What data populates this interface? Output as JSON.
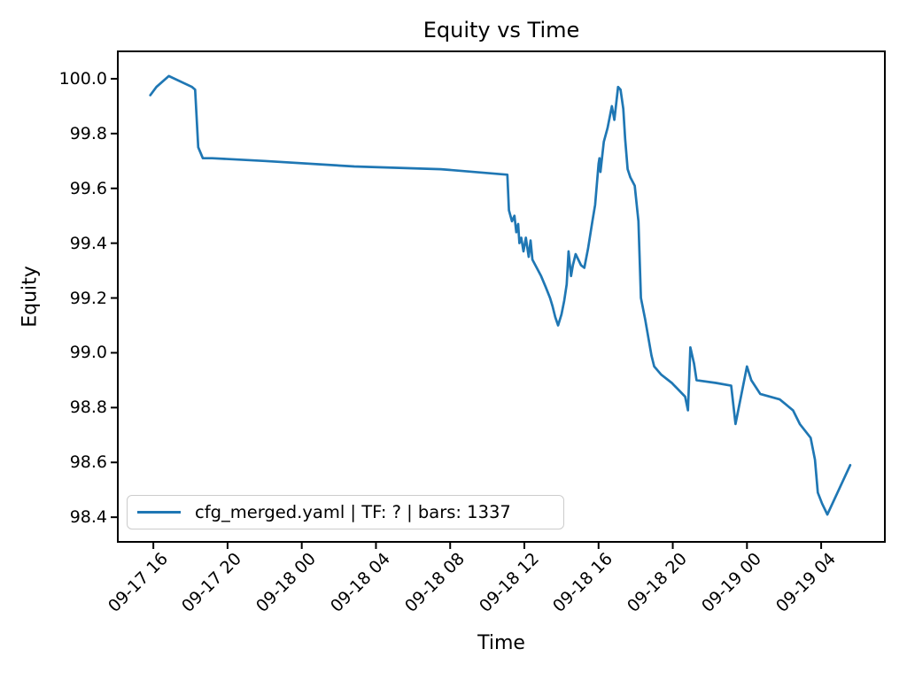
{
  "colors": {
    "line": "#1f77b4",
    "background": "#ffffff",
    "text": "#000000",
    "legend_border": "#cccccc"
  },
  "chart_data": {
    "type": "line",
    "title": "Equity vs Time",
    "xlabel": "Time",
    "ylabel": "Equity",
    "legend_position": "lower left",
    "grid": false,
    "xlim": [
      "09-17 14:05",
      "09-19 07:26"
    ],
    "ylim": [
      98.31,
      100.1
    ],
    "x_ticks": [
      "09-17 16",
      "09-17 20",
      "09-18 00",
      "09-18 04",
      "09-18 08",
      "09-18 12",
      "09-18 16",
      "09-18 20",
      "09-19 00",
      "09-19 04"
    ],
    "y_ticks": [
      "100.0",
      "99.8",
      "99.6",
      "99.4",
      "99.2",
      "99.0",
      "98.8",
      "98.6",
      "98.4"
    ],
    "series": [
      {
        "name": "cfg_merged.yaml | TF: ? | bars: 1337",
        "color": "#1f77b4",
        "points": [
          [
            "09-17 15:50",
            99.94
          ],
          [
            "09-17 16:10",
            99.97
          ],
          [
            "09-17 16:50",
            100.01
          ],
          [
            "09-17 18:05",
            99.97
          ],
          [
            "09-17 18:15",
            99.96
          ],
          [
            "09-17 18:25",
            99.75
          ],
          [
            "09-17 18:40",
            99.71
          ],
          [
            "09-17 19:10",
            99.71
          ],
          [
            "09-17 22:00",
            99.7
          ],
          [
            "09-18 02:50",
            99.68
          ],
          [
            "09-18 07:30",
            99.67
          ],
          [
            "09-18 11:05",
            99.65
          ],
          [
            "09-18 11:10",
            99.52
          ],
          [
            "09-18 11:20",
            99.48
          ],
          [
            "09-18 11:28",
            99.5
          ],
          [
            "09-18 11:34",
            99.44
          ],
          [
            "09-18 11:40",
            99.47
          ],
          [
            "09-18 11:44",
            99.4
          ],
          [
            "09-18 11:50",
            99.42
          ],
          [
            "09-18 11:57",
            99.37
          ],
          [
            "09-18 12:05",
            99.42
          ],
          [
            "09-18 12:10",
            99.38
          ],
          [
            "09-18 12:14",
            99.35
          ],
          [
            "09-18 12:20",
            99.41
          ],
          [
            "09-18 12:26",
            99.34
          ],
          [
            "09-18 12:40",
            99.31
          ],
          [
            "09-18 12:54",
            99.28
          ],
          [
            "09-18 13:09",
            99.24
          ],
          [
            "09-18 13:23",
            99.2
          ],
          [
            "09-18 13:31",
            99.17
          ],
          [
            "09-18 13:40",
            99.13
          ],
          [
            "09-18 13:49",
            99.1
          ],
          [
            "09-18 14:00",
            99.14
          ],
          [
            "09-18 14:09",
            99.19
          ],
          [
            "09-18 14:17",
            99.25
          ],
          [
            "09-18 14:23",
            99.37
          ],
          [
            "09-18 14:31",
            99.28
          ],
          [
            "09-18 14:37",
            99.32
          ],
          [
            "09-18 14:46",
            99.36
          ],
          [
            "09-18 15:03",
            99.32
          ],
          [
            "09-18 15:14",
            99.31
          ],
          [
            "09-18 15:26",
            99.38
          ],
          [
            "09-18 15:40",
            99.48
          ],
          [
            "09-18 15:49",
            99.54
          ],
          [
            "09-18 16:00",
            99.69
          ],
          [
            "09-18 16:03",
            99.71
          ],
          [
            "09-18 16:06",
            99.66
          ],
          [
            "09-18 16:17",
            99.77
          ],
          [
            "09-18 16:29",
            99.82
          ],
          [
            "09-18 16:43",
            99.9
          ],
          [
            "09-18 16:51",
            99.85
          ],
          [
            "09-18 17:03",
            99.97
          ],
          [
            "09-18 17:11",
            99.96
          ],
          [
            "09-18 17:20",
            99.89
          ],
          [
            "09-18 17:26",
            99.78
          ],
          [
            "09-18 17:34",
            99.67
          ],
          [
            "09-18 17:43",
            99.64
          ],
          [
            "09-18 17:57",
            99.61
          ],
          [
            "09-18 18:09",
            99.48
          ],
          [
            "09-18 18:17",
            99.2
          ],
          [
            "09-18 18:31",
            99.12
          ],
          [
            "09-18 18:51",
            98.99
          ],
          [
            "09-18 19:00",
            98.95
          ],
          [
            "09-18 19:23",
            98.92
          ],
          [
            "09-18 19:57",
            98.89
          ],
          [
            "09-18 20:40",
            98.84
          ],
          [
            "09-18 20:49",
            98.79
          ],
          [
            "09-18 20:57",
            99.02
          ],
          [
            "09-18 21:09",
            98.96
          ],
          [
            "09-18 21:17",
            98.9
          ],
          [
            "09-18 22:20",
            98.89
          ],
          [
            "09-18 23:09",
            98.88
          ],
          [
            "09-18 23:23",
            98.74
          ],
          [
            "09-19 00:00",
            98.95
          ],
          [
            "09-19 00:14",
            98.9
          ],
          [
            "09-19 00:43",
            98.85
          ],
          [
            "09-19 01:46",
            98.83
          ],
          [
            "09-19 02:29",
            98.79
          ],
          [
            "09-19 02:51",
            98.74
          ],
          [
            "09-19 03:26",
            98.69
          ],
          [
            "09-19 03:40",
            98.61
          ],
          [
            "09-19 03:49",
            98.49
          ],
          [
            "09-19 04:03",
            98.45
          ],
          [
            "09-19 04:20",
            98.41
          ],
          [
            "09-19 05:34",
            98.59
          ]
        ]
      }
    ]
  }
}
